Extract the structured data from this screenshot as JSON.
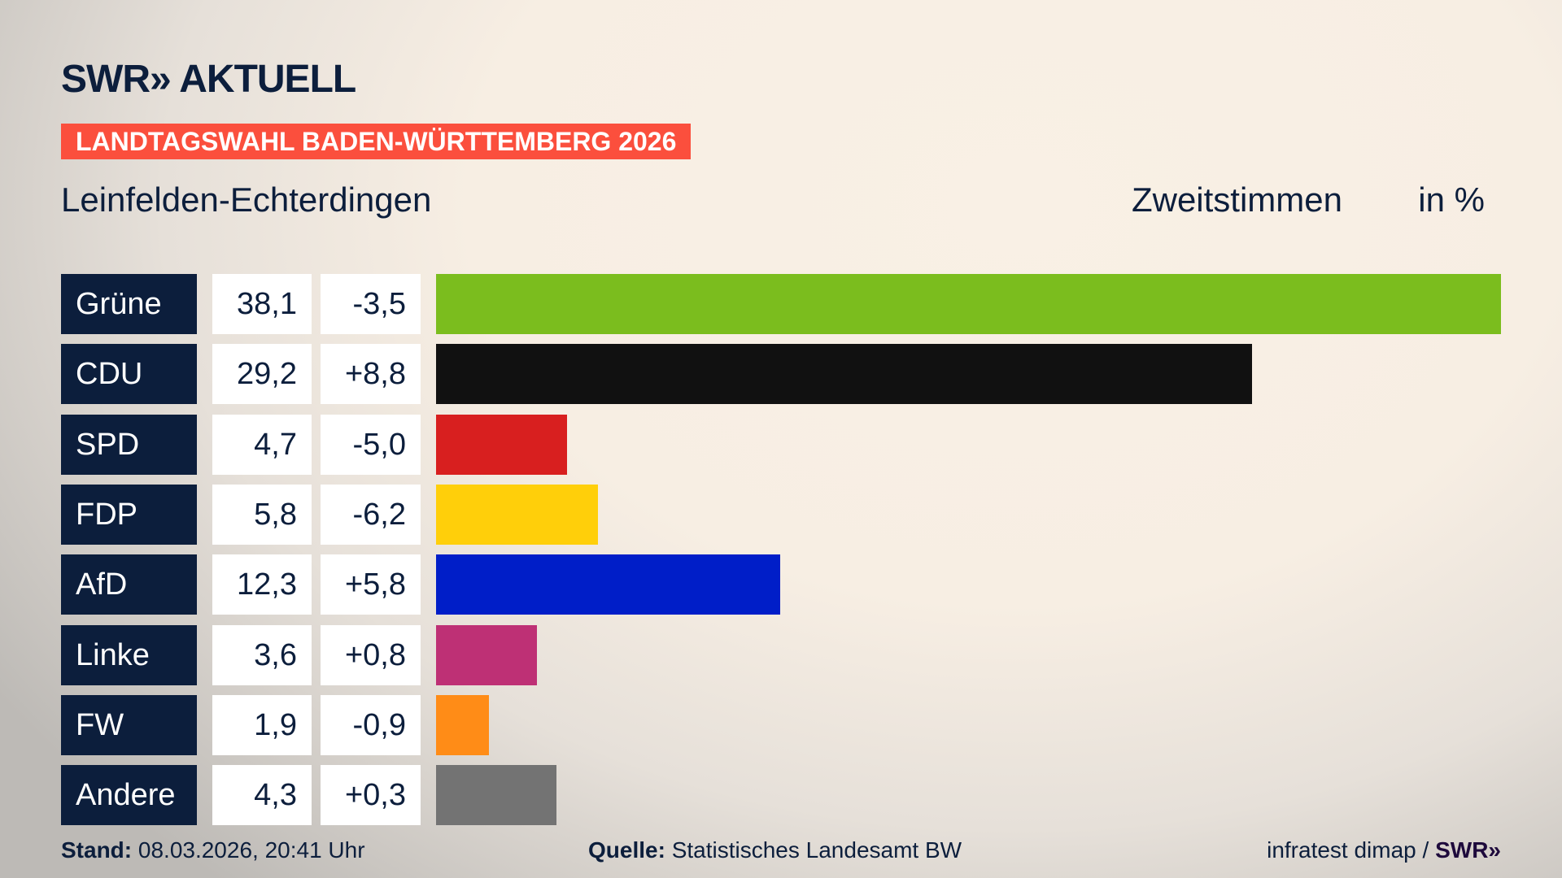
{
  "header": {
    "logo": "SWR» AKTUELL",
    "banner": "LANDTAGSWAHL BADEN-WÜRTTEMBERG 2026",
    "district": "Leinfelden-Echterdingen",
    "vote_type": "Zweitstimmen",
    "unit": "in %"
  },
  "chart_data": {
    "type": "bar",
    "orientation": "horizontal",
    "categories": [
      "Grüne",
      "CDU",
      "SPD",
      "FDP",
      "AfD",
      "Linke",
      "FW",
      "Andere"
    ],
    "values": [
      38.1,
      29.2,
      4.7,
      5.8,
      12.3,
      3.6,
      1.9,
      4.3
    ],
    "value_labels": [
      "38,1",
      "29,2",
      "4,7",
      "5,8",
      "12,3",
      "3,6",
      "1,9",
      "4,3"
    ],
    "changes": [
      "-3,5",
      "+8,8",
      "-5,0",
      "-6,2",
      "+5,8",
      "+0,8",
      "-0,9",
      "+0,3"
    ],
    "colors": [
      "#7bbd1e",
      "#111111",
      "#d81f1f",
      "#ffcf0a",
      "#001ec8",
      "#be3075",
      "#ff8c17",
      "#737373"
    ],
    "xlim": [
      0,
      38.1
    ]
  },
  "footer": {
    "stand_label": "Stand:",
    "stand_value": "08.03.2026, 20:41 Uhr",
    "source_label": "Quelle:",
    "source_value": "Statistisches Landesamt BW",
    "credit": "infratest dimap /",
    "credit_logo": "SWR»"
  }
}
